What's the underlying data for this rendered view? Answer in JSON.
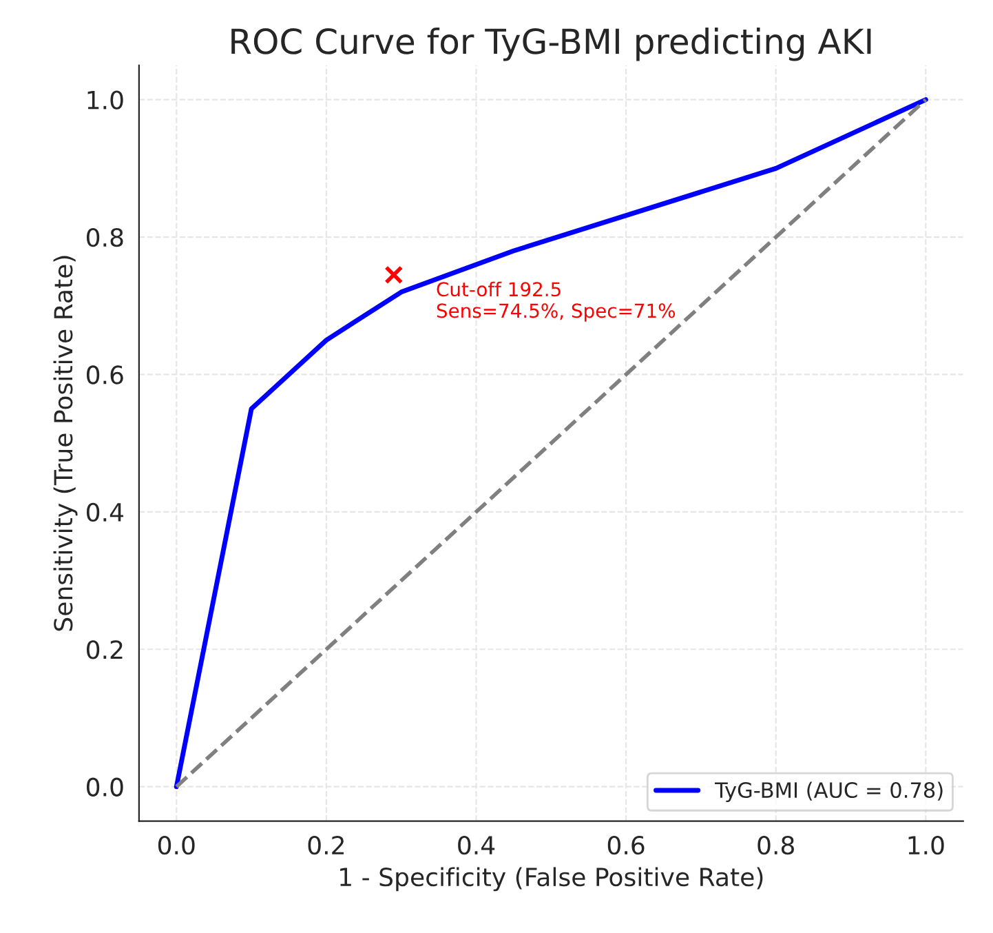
{
  "chart_data": {
    "type": "line",
    "title": "ROC Curve for TyG-BMI predicting AKI",
    "xlabel": "1 - Specificity (False Positive Rate)",
    "ylabel": "Sensitivity (True Positive Rate)",
    "series": [
      {
        "name": "TyG-BMI (AUC = 0.78)",
        "color": "#0000ff",
        "x": [
          0,
          0.1,
          0.2,
          0.3,
          0.45,
          0.8,
          1.0
        ],
        "values": [
          0,
          0.55,
          0.65,
          0.72,
          0.78,
          0.9,
          1.0
        ],
        "line_style": "solid"
      },
      {
        "color": "#808080",
        "x": [
          0,
          1
        ],
        "values": [
          0,
          1
        ],
        "line_style": "dashed"
      },
      {
        "type": "scatter",
        "color": "#ff0000",
        "x": [
          0.29
        ],
        "values": [
          0.745
        ],
        "marker": "cross"
      }
    ],
    "annotations": [
      {
        "text": "Cut-off 192.5\nSens=74.5%, Spec=71%",
        "x": 0.29,
        "y": 0.745
      }
    ],
    "xlim": [
      -0.05,
      1.05
    ],
    "ylim": [
      -0.05,
      1.05
    ],
    "xticks": [
      {
        "value": 0,
        "label": "0.0"
      },
      0.2,
      0.4,
      0.6,
      0.8,
      {
        "value": 1,
        "label": "1.0"
      }
    ],
    "yticks": [
      {
        "value": 0,
        "label": "0.0"
      },
      0.2,
      0.4,
      0.6,
      0.8,
      {
        "value": 1,
        "label": "1.0"
      }
    ],
    "grid": true,
    "legend": "bottom right"
  }
}
